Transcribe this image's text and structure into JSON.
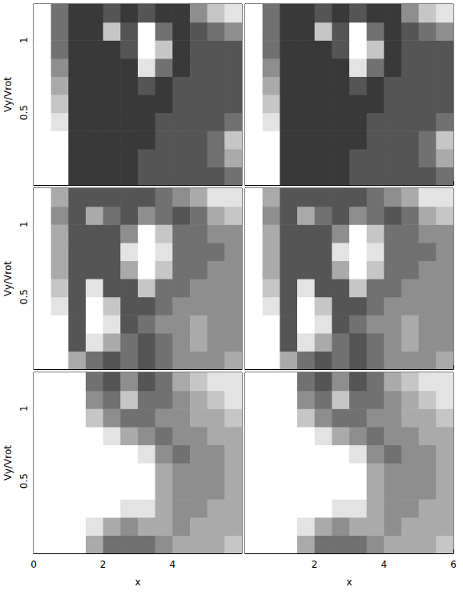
{
  "chart_data": [
    {
      "type": "heatmap",
      "ylabel": "Vy/Vrot",
      "xlim": [
        0,
        6
      ],
      "ylim": [
        0,
        1.25
      ],
      "xticks": [
        0,
        2,
        4
      ],
      "yticks": [
        0.5,
        1
      ],
      "tick_labels": "y",
      "zlim": [
        0,
        9
      ],
      "cells": [
        [
          0,
          0,
          7,
          7,
          7,
          7,
          6,
          6,
          6,
          6,
          6,
          5
        ],
        [
          0,
          0,
          7,
          7,
          7,
          7,
          6,
          6,
          6,
          6,
          5,
          3
        ],
        [
          0,
          0,
          7,
          7,
          7,
          7,
          7,
          6,
          6,
          6,
          5,
          2
        ],
        [
          0,
          1,
          7,
          7,
          7,
          7,
          7,
          6,
          6,
          6,
          6,
          5
        ],
        [
          0,
          2,
          7,
          7,
          7,
          7,
          7,
          7,
          6,
          6,
          6,
          6
        ],
        [
          0,
          3,
          7,
          7,
          7,
          7,
          6,
          7,
          6,
          6,
          6,
          6
        ],
        [
          0,
          4,
          7,
          7,
          7,
          7,
          1,
          5,
          7,
          6,
          6,
          6
        ],
        [
          0,
          5,
          7,
          7,
          7,
          6,
          0,
          2,
          7,
          6,
          6,
          6
        ],
        [
          0,
          5,
          7,
          7,
          2,
          6,
          0,
          5,
          7,
          6,
          5,
          4
        ],
        [
          0,
          5,
          7,
          7,
          6,
          7,
          6,
          7,
          7,
          4,
          2,
          1
        ]
      ]
    },
    {
      "type": "heatmap",
      "xlim": [
        0,
        6
      ],
      "ylim": [
        0,
        1.25
      ],
      "xticks": [
        2,
        4,
        6
      ],
      "yticks": [
        0.5,
        1
      ],
      "tick_labels": false,
      "zlim": [
        0,
        9
      ],
      "cells": [
        [
          0,
          0,
          7,
          7,
          7,
          7,
          6,
          6,
          6,
          6,
          6,
          5
        ],
        [
          0,
          0,
          7,
          7,
          7,
          7,
          6,
          6,
          6,
          6,
          5,
          3
        ],
        [
          0,
          0,
          7,
          7,
          7,
          7,
          7,
          6,
          6,
          6,
          5,
          2
        ],
        [
          0,
          1,
          7,
          7,
          7,
          7,
          7,
          6,
          6,
          6,
          6,
          5
        ],
        [
          0,
          2,
          7,
          7,
          7,
          7,
          7,
          7,
          6,
          6,
          6,
          6
        ],
        [
          0,
          3,
          7,
          7,
          7,
          7,
          6,
          7,
          6,
          6,
          6,
          6
        ],
        [
          0,
          4,
          7,
          7,
          7,
          7,
          1,
          5,
          7,
          6,
          6,
          6
        ],
        [
          0,
          5,
          7,
          7,
          7,
          6,
          0,
          2,
          7,
          6,
          6,
          6
        ],
        [
          0,
          5,
          7,
          7,
          2,
          6,
          0,
          5,
          7,
          6,
          5,
          4
        ],
        [
          0,
          5,
          7,
          7,
          6,
          7,
          6,
          7,
          7,
          4,
          2,
          1
        ]
      ]
    },
    {
      "type": "heatmap",
      "ylabel": "Vy/Vrot",
      "xlim": [
        0,
        6
      ],
      "ylim": [
        0,
        1.25
      ],
      "xticks": [
        0,
        2,
        4
      ],
      "yticks": [
        0.5,
        1
      ],
      "tick_labels": "y",
      "zlim": [
        0,
        9
      ],
      "cells": [
        [
          0,
          0,
          3,
          5,
          6,
          5,
          6,
          5,
          4,
          4,
          4,
          3
        ],
        [
          0,
          0,
          6,
          1,
          3,
          5,
          6,
          5,
          4,
          3,
          4,
          4
        ],
        [
          0,
          0,
          6,
          0,
          1,
          6,
          5,
          4,
          4,
          3,
          4,
          4
        ],
        [
          0,
          1,
          6,
          0,
          2,
          6,
          6,
          5,
          4,
          4,
          4,
          4
        ],
        [
          0,
          2,
          6,
          1,
          6,
          6,
          2,
          5,
          5,
          4,
          4,
          4
        ],
        [
          0,
          3,
          6,
          6,
          6,
          3,
          0,
          2,
          5,
          5,
          4,
          4
        ],
        [
          0,
          3,
          6,
          6,
          6,
          1,
          0,
          1,
          5,
          5,
          5,
          4
        ],
        [
          0,
          3,
          6,
          6,
          6,
          4,
          0,
          2,
          5,
          5,
          4,
          4
        ],
        [
          0,
          4,
          6,
          3,
          5,
          6,
          4,
          5,
          6,
          5,
          3,
          2
        ],
        [
          0,
          3,
          6,
          6,
          6,
          6,
          6,
          5,
          4,
          3,
          1,
          1
        ]
      ]
    },
    {
      "type": "heatmap",
      "xlim": [
        0,
        6
      ],
      "ylim": [
        0,
        1.25
      ],
      "xticks": [
        2,
        4,
        6
      ],
      "yticks": [
        0.5,
        1
      ],
      "tick_labels": false,
      "zlim": [
        0,
        9
      ],
      "cells": [
        [
          0,
          0,
          3,
          5,
          6,
          5,
          6,
          5,
          4,
          4,
          4,
          3
        ],
        [
          0,
          0,
          6,
          1,
          3,
          5,
          6,
          5,
          4,
          3,
          4,
          4
        ],
        [
          0,
          0,
          6,
          0,
          1,
          6,
          5,
          4,
          4,
          3,
          4,
          4
        ],
        [
          0,
          1,
          6,
          0,
          2,
          6,
          6,
          5,
          4,
          4,
          4,
          4
        ],
        [
          0,
          2,
          6,
          1,
          6,
          6,
          2,
          5,
          5,
          4,
          4,
          4
        ],
        [
          0,
          3,
          6,
          6,
          6,
          3,
          0,
          2,
          5,
          5,
          4,
          4
        ],
        [
          0,
          3,
          6,
          6,
          6,
          1,
          0,
          1,
          5,
          5,
          5,
          4
        ],
        [
          0,
          3,
          6,
          6,
          6,
          4,
          0,
          2,
          5,
          5,
          4,
          4
        ],
        [
          0,
          4,
          6,
          3,
          5,
          6,
          4,
          5,
          6,
          5,
          3,
          2
        ],
        [
          0,
          3,
          6,
          6,
          6,
          6,
          6,
          5,
          4,
          3,
          1,
          1
        ]
      ]
    },
    {
      "type": "heatmap",
      "xlabel": "x",
      "ylabel": "Vy/Vrot",
      "xlim": [
        0,
        6
      ],
      "ylim": [
        0,
        1.25
      ],
      "xticks": [
        0,
        2,
        4
      ],
      "yticks": [
        0.5,
        1
      ],
      "zlim": [
        0,
        9
      ],
      "cells": [
        [
          0,
          0,
          0,
          3,
          5,
          5,
          5,
          4,
          3,
          3,
          3,
          2
        ],
        [
          0,
          0,
          0,
          1,
          3,
          4,
          3,
          3,
          4,
          3,
          3,
          3
        ],
        [
          0,
          0,
          0,
          0,
          0,
          1,
          1,
          3,
          4,
          4,
          3,
          3
        ],
        [
          0,
          0,
          0,
          0,
          0,
          0,
          0,
          3,
          4,
          4,
          4,
          3
        ],
        [
          0,
          0,
          0,
          0,
          0,
          0,
          0,
          3,
          4,
          4,
          4,
          3
        ],
        [
          0,
          0,
          0,
          0,
          0,
          0,
          1,
          4,
          5,
          4,
          4,
          3
        ],
        [
          0,
          0,
          0,
          0,
          1,
          3,
          4,
          5,
          4,
          4,
          3,
          3
        ],
        [
          0,
          0,
          0,
          2,
          4,
          5,
          5,
          4,
          4,
          3,
          3,
          2
        ],
        [
          0,
          0,
          0,
          4,
          5,
          2,
          5,
          5,
          4,
          3,
          2,
          1
        ],
        [
          0,
          0,
          0,
          5,
          6,
          4,
          6,
          5,
          3,
          2,
          1,
          1
        ]
      ]
    },
    {
      "type": "heatmap",
      "xlabel": "x",
      "xlim": [
        0,
        6
      ],
      "ylim": [
        0,
        1.25
      ],
      "xticks": [
        2,
        4,
        6
      ],
      "yticks": [
        0.5,
        1
      ],
      "tick_labels": "x",
      "zlim": [
        0,
        9
      ],
      "cells": [
        [
          0,
          0,
          0,
          3,
          5,
          5,
          5,
          4,
          3,
          3,
          3,
          2
        ],
        [
          0,
          0,
          0,
          1,
          3,
          4,
          3,
          3,
          4,
          3,
          3,
          3
        ],
        [
          0,
          0,
          0,
          0,
          0,
          1,
          1,
          3,
          4,
          4,
          3,
          3
        ],
        [
          0,
          0,
          0,
          0,
          0,
          0,
          0,
          3,
          4,
          4,
          4,
          3
        ],
        [
          0,
          0,
          0,
          0,
          0,
          0,
          0,
          3,
          4,
          4,
          4,
          3
        ],
        [
          0,
          0,
          0,
          0,
          0,
          0,
          1,
          4,
          5,
          4,
          4,
          3
        ],
        [
          0,
          0,
          0,
          0,
          1,
          3,
          4,
          5,
          4,
          4,
          3,
          3
        ],
        [
          0,
          0,
          0,
          2,
          4,
          5,
          5,
          4,
          4,
          3,
          3,
          2
        ],
        [
          0,
          0,
          0,
          4,
          5,
          2,
          5,
          5,
          4,
          3,
          2,
          1
        ],
        [
          0,
          0,
          0,
          5,
          6,
          4,
          6,
          5,
          3,
          2,
          1,
          1
        ]
      ]
    }
  ]
}
